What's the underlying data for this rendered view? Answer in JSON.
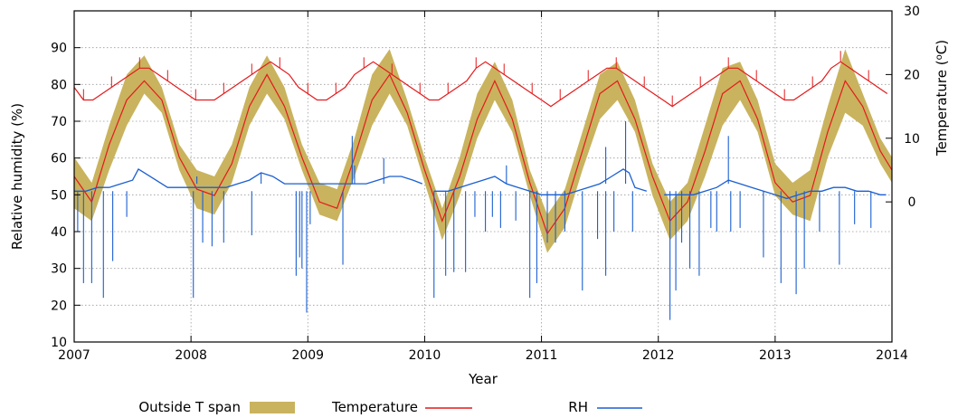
{
  "chart_data": {
    "type": "line",
    "xlabel": "Year",
    "ylabel": "Relative humidity (%)",
    "y2label": "Temperature (",
    "y2label_sup": "o",
    "y2label_end": "C)",
    "xlim": [
      2007,
      2014
    ],
    "ylim": [
      10,
      100
    ],
    "y2lim": [
      -22,
      30
    ],
    "x_ticks": [
      2007,
      2008,
      2009,
      2010,
      2011,
      2012,
      2013,
      2014
    ],
    "y_ticks": [
      10,
      20,
      30,
      40,
      50,
      60,
      70,
      80,
      90
    ],
    "y2_ticks": [
      0,
      10,
      20,
      30
    ],
    "grid": true,
    "legend_position": "bottom",
    "series": [
      {
        "name": "Outside T span",
        "kind": "band",
        "color": "#c9b35e",
        "x": [
          2007.0,
          2007.15,
          2007.3,
          2007.45,
          2007.6,
          2007.75,
          2007.9,
          2008.05,
          2008.2,
          2008.35,
          2008.5,
          2008.65,
          2008.8,
          2008.95,
          2009.1,
          2009.25,
          2009.4,
          2009.55,
          2009.7,
          2009.85,
          2010.0,
          2010.15,
          2010.3,
          2010.45,
          2010.6,
          2010.75,
          2010.9,
          2011.05,
          2011.2,
          2011.35,
          2011.5,
          2011.65,
          2011.8,
          2011.95,
          2012.1,
          2012.25,
          2012.4,
          2012.55,
          2012.7,
          2012.85,
          2013.0,
          2013.15,
          2013.3,
          2013.45,
          2013.6,
          2013.75,
          2013.9,
          2014.0
        ],
        "low": [
          -1,
          -3,
          5,
          12,
          17,
          14,
          5,
          -1,
          -2,
          3,
          12,
          17,
          13,
          5,
          -2,
          -3,
          4,
          12,
          17,
          12,
          3,
          -6,
          1,
          10,
          16,
          11,
          1,
          -8,
          -4,
          5,
          13,
          16,
          11,
          1,
          -6,
          -3,
          4,
          12,
          16,
          11,
          1,
          -2,
          -3,
          7,
          14,
          12,
          6,
          3
        ],
        "high": [
          7,
          3,
          12,
          20,
          23,
          18,
          9,
          5,
          4,
          9,
          18,
          23,
          18,
          9,
          3,
          2,
          10,
          20,
          24,
          16,
          7,
          -1,
          7,
          17,
          22,
          16,
          5,
          -2,
          2,
          11,
          20,
          22,
          16,
          6,
          0,
          3,
          12,
          21,
          22,
          16,
          6,
          3,
          5,
          15,
          24,
          17,
          10,
          7
        ]
      },
      {
        "name": "Temperature",
        "kind": "line",
        "color": "#e41a1c",
        "x": [
          2007.0,
          2007.15,
          2007.3,
          2007.45,
          2007.6,
          2007.75,
          2007.9,
          2008.05,
          2008.2,
          2008.35,
          2008.5,
          2008.65,
          2008.8,
          2008.95,
          2009.1,
          2009.25,
          2009.4,
          2009.55,
          2009.7,
          2009.85,
          2010.0,
          2010.15,
          2010.3,
          2010.45,
          2010.6,
          2010.75,
          2010.9,
          2011.05,
          2011.2,
          2011.35,
          2011.5,
          2011.65,
          2011.8,
          2011.95,
          2012.1,
          2012.25,
          2012.4,
          2012.55,
          2012.7,
          2012.85,
          2013.0,
          2013.15,
          2013.3,
          2013.45,
          2013.6,
          2013.75,
          2013.9,
          2014.0
        ],
        "y": [
          4,
          0,
          9,
          16,
          19,
          16,
          7,
          2,
          1,
          6,
          15,
          20,
          15,
          7,
          0,
          -1,
          7,
          16,
          20,
          14,
          5,
          -3,
          4,
          13,
          19,
          13,
          3,
          -5,
          -1,
          8,
          17,
          19,
          13,
          4,
          -3,
          0,
          8,
          17,
          19,
          13,
          3,
          0,
          1,
          11,
          19,
          15,
          8,
          5
        ],
        "peaks_x": [
          2007.0,
          2007.08,
          2007.16,
          2007.24,
          2007.32,
          2007.4,
          2007.48,
          2007.56,
          2007.64,
          2007.72,
          2007.8,
          2007.88,
          2007.96,
          2008.04,
          2008.12,
          2008.2,
          2008.28,
          2008.36,
          2008.44,
          2008.52,
          2008.6,
          2008.68,
          2008.76,
          2008.84,
          2008.92,
          2009.0,
          2009.08,
          2009.16,
          2009.24,
          2009.32,
          2009.4,
          2009.48,
          2009.56,
          2009.64,
          2009.72,
          2009.8,
          2009.88,
          2009.96,
          2010.04,
          2010.12,
          2010.2,
          2010.28,
          2010.36,
          2010.44,
          2010.52,
          2010.6,
          2010.68,
          2010.76,
          2010.84,
          2010.92,
          2011.0,
          2011.08,
          2011.16,
          2011.24,
          2011.32,
          2011.4,
          2011.48,
          2011.56,
          2011.64,
          2011.72,
          2011.8,
          2011.88,
          2011.96,
          2012.04,
          2012.12,
          2012.2,
          2012.28,
          2012.36,
          2012.44,
          2012.52,
          2012.6,
          2012.68,
          2012.76,
          2012.84,
          2012.92,
          2013.0,
          2013.08,
          2013.16,
          2013.24,
          2013.32,
          2013.4,
          2013.48,
          2013.56,
          2013.64,
          2013.72,
          2013.8,
          2013.88,
          2013.96
        ],
        "peaks_y": [
          18,
          16,
          16,
          17,
          18,
          19,
          20,
          21,
          21,
          20,
          19,
          18,
          17,
          16,
          16,
          16,
          17,
          18,
          19,
          20,
          21,
          22,
          21,
          20,
          18,
          17,
          16,
          16,
          17,
          18,
          20,
          21,
          22,
          21,
          20,
          19,
          18,
          17,
          16,
          16,
          17,
          18,
          19,
          21,
          22,
          21,
          20,
          19,
          18,
          17,
          16,
          15,
          16,
          17,
          18,
          19,
          20,
          21,
          21,
          20,
          19,
          18,
          17,
          16,
          15,
          16,
          17,
          18,
          19,
          20,
          21,
          21,
          20,
          19,
          18,
          17,
          16,
          16,
          17,
          18,
          19,
          21,
          22,
          21,
          20,
          19,
          18,
          17
        ]
      },
      {
        "name": "RH",
        "kind": "line",
        "color": "#1b5fd1",
        "x": [
          2007.0,
          2007.1,
          2007.2,
          2007.3,
          2007.4,
          2007.5,
          2007.55,
          2007.6,
          2007.7,
          2007.8,
          2007.9,
          2008.0,
          2008.1,
          2008.2,
          2008.3,
          2008.4,
          2008.5,
          2008.6,
          2008.7,
          2008.8,
          2008.9,
          2009.0,
          2009.1,
          2009.2,
          2009.3,
          2009.4,
          2009.5,
          2009.6,
          2009.7,
          2009.8,
          2009.9,
          2009.98
        ],
        "y": [
          51,
          51,
          52,
          52,
          53,
          54,
          57,
          56,
          54,
          52,
          52,
          52,
          52,
          52,
          52,
          53,
          54,
          56,
          55,
          53,
          53,
          53,
          53,
          53,
          53,
          53,
          53,
          54,
          55,
          55,
          54,
          53
        ],
        "x_b": [
          2010.08,
          2010.2,
          2010.3,
          2010.4,
          2010.5,
          2010.6,
          2010.7,
          2010.8,
          2010.9,
          2011.0,
          2011.1,
          2011.2,
          2011.3,
          2011.4,
          2011.5,
          2011.6,
          2011.7,
          2011.75,
          2011.8,
          2011.9
        ],
        "y_b": [
          51,
          51,
          52,
          53,
          54,
          55,
          53,
          52,
          51,
          50,
          50,
          50,
          51,
          52,
          53,
          55,
          57,
          56,
          52,
          51
        ],
        "x_c": [
          2012.05,
          2012.2,
          2012.3,
          2012.4,
          2012.5,
          2012.6,
          2012.7,
          2012.8,
          2012.9,
          2013.0,
          2013.1,
          2013.2,
          2013.3,
          2013.4,
          2013.5,
          2013.6,
          2013.7,
          2013.8,
          2013.9,
          2013.95
        ],
        "y_c": [
          50,
          50,
          50,
          51,
          52,
          54,
          53,
          52,
          51,
          50,
          49,
          50,
          51,
          51,
          52,
          52,
          51,
          51,
          50,
          50
        ],
        "dips_x": [
          2007.03,
          2007.08,
          2007.15,
          2007.25,
          2007.33,
          2007.45,
          2008.02,
          2008.1,
          2008.18,
          2008.28,
          2008.52,
          2008.9,
          2008.93,
          2008.95,
          2008.99,
          2009.02,
          2009.3,
          2010.08,
          2010.18,
          2010.25,
          2010.35,
          2010.43,
          2010.52,
          2010.58,
          2010.65,
          2010.78,
          2010.9,
          2010.96,
          2011.05,
          2011.12,
          2011.2,
          2011.35,
          2011.48,
          2011.55,
          2011.62,
          2011.78,
          2012.1,
          2012.15,
          2012.2,
          2012.27,
          2012.35,
          2012.45,
          2012.5,
          2012.62,
          2012.7,
          2012.9,
          2013.05,
          2013.18,
          2013.25,
          2013.38,
          2013.55,
          2013.68,
          2013.82
        ],
        "dips_y": [
          40,
          26,
          26,
          22,
          32,
          44,
          22,
          37,
          36,
          37,
          39,
          28,
          33,
          30,
          18,
          42,
          31,
          22,
          28,
          29,
          29,
          44,
          40,
          44,
          41,
          43,
          22,
          26,
          37,
          37,
          40,
          24,
          38,
          28,
          40,
          40,
          16,
          24,
          37,
          30,
          28,
          41,
          40,
          40,
          41,
          33,
          26,
          23,
          30,
          40,
          31,
          42,
          41
        ],
        "spikes_x": [
          2008.05,
          2008.6,
          2009.4,
          2009.38,
          2009.65,
          2010.7,
          2011.55,
          2011.72,
          2012.6
        ],
        "spikes_y": [
          55,
          56,
          58,
          66,
          60,
          58,
          63,
          70,
          66
        ]
      }
    ]
  }
}
